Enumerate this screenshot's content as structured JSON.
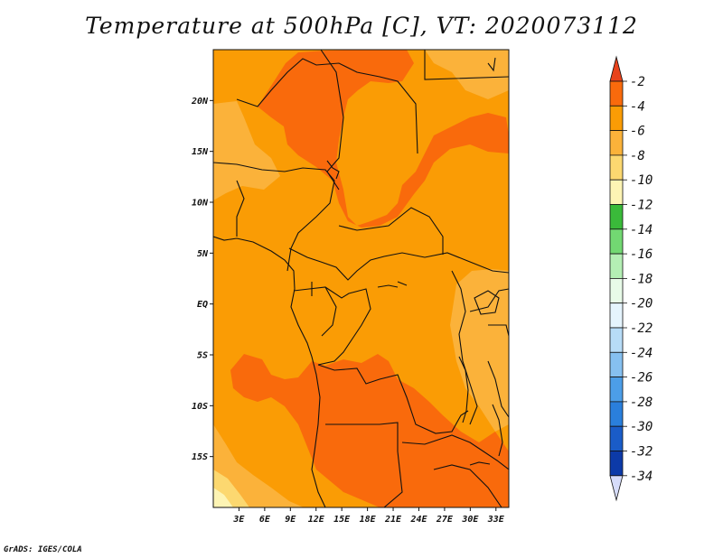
{
  "title": "Temperature at 500hPa [C], VT: 2020073112",
  "footer": "GrADS: IGES/COLA",
  "map": {
    "lon_range": [
      0,
      34.5
    ],
    "lat_range": [
      -20,
      25
    ],
    "lon_ticks": [
      "3E",
      "6E",
      "9E",
      "12E",
      "15E",
      "18E",
      "21E",
      "24E",
      "27E",
      "30E",
      "33E"
    ],
    "lat_ticks": [
      "20N",
      "15N",
      "10N",
      "5N",
      "EQ",
      "5S",
      "10S",
      "15S"
    ],
    "lon_tick_values": [
      3,
      6,
      9,
      12,
      15,
      18,
      21,
      24,
      27,
      30,
      33
    ],
    "lat_tick_values": [
      20,
      15,
      10,
      5,
      0,
      -5,
      -10,
      -15
    ]
  },
  "colorbar": {
    "labels": [
      "-2",
      "-4",
      "-6",
      "-8",
      "-10",
      "-12",
      "-14",
      "-16",
      "-18",
      "-20",
      "-22",
      "-24",
      "-26",
      "-28",
      "-30",
      "-32",
      "-34"
    ],
    "colors": {
      "top_arrow": "#e8431c",
      "band_-4_-2": "#f96a0c",
      "band_-6_-4": "#fa9c05",
      "band_-8_-6": "#fbb23a",
      "band_-10_-8": "#fcd870",
      "band_-12_-10": "#fdf4b4",
      "band_-14_-12": "#3aba3a",
      "band_-16_-14": "#72d872",
      "band_-18_-16": "#b4efb4",
      "band_-20_-18": "#e8fbe8",
      "band_-22_-20": "#e5f4fd",
      "band_-24_-22": "#b7dcf7",
      "band_-26_-24": "#86c0f0",
      "band_-28_-26": "#4c9ee8",
      "band_-30_-28": "#2a7fdc",
      "band_-32_-30": "#1a5cc8",
      "band_-34_-32": "#0c3aa8",
      "bottom_band": "#08106c",
      "bottom_arrow": "#d6dcfa"
    }
  },
  "field_colors": {
    "warm": "#f96a0c",
    "mid": "#fa9c05",
    "cool": "#fbb23a",
    "cooler": "#fcd870",
    "coolest": "#fdf4b4"
  }
}
